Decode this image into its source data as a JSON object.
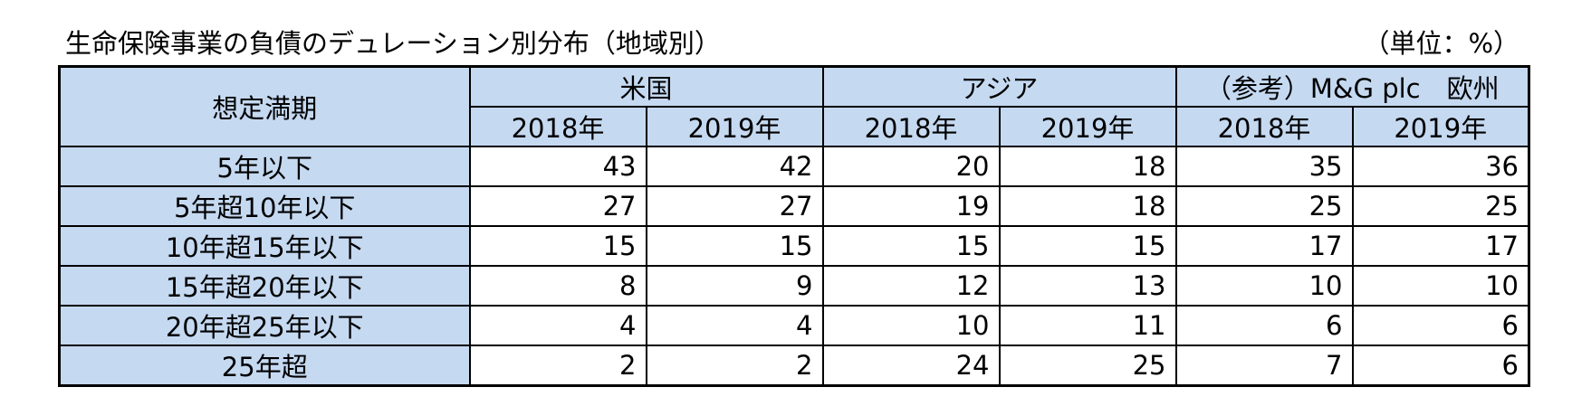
{
  "title": "生命保険事業の負債のデュレーション別分布（地域別）",
  "unit": "（単位：%）",
  "table": {
    "corner_header": "想定満期",
    "groups": [
      "米国",
      "アジア",
      "（参考）M&G plc　欧州"
    ],
    "years": [
      "2018年",
      "2019年",
      "2018年",
      "2019年",
      "2018年",
      "2019年"
    ],
    "rows": [
      {
        "label": "5年以下",
        "values": [
          "43",
          "42",
          "20",
          "18",
          "35",
          "36"
        ]
      },
      {
        "label": "5年超10年以下",
        "values": [
          "27",
          "27",
          "19",
          "18",
          "25",
          "25"
        ]
      },
      {
        "label": "10年超15年以下",
        "values": [
          "15",
          "15",
          "15",
          "15",
          "17",
          "17"
        ]
      },
      {
        "label": "15年超20年以下",
        "values": [
          "8",
          "9",
          "12",
          "13",
          "10",
          "10"
        ]
      },
      {
        "label": "20年超25年以下",
        "values": [
          "4",
          "4",
          "10",
          "11",
          "6",
          "6"
        ]
      },
      {
        "label": "25年超",
        "values": [
          "2",
          "2",
          "24",
          "25",
          "7",
          "6"
        ]
      }
    ]
  },
  "colors": {
    "header_fill": "#c5d9f1",
    "border": "#000000"
  }
}
